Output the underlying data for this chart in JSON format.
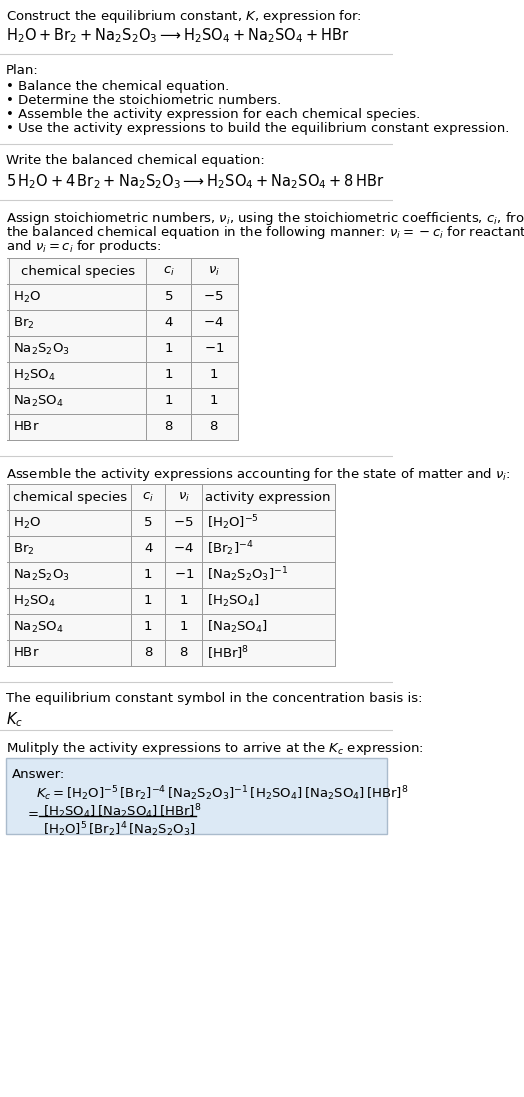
{
  "title_line1": "Construct the equilibrium constant, $K$, expression for:",
  "title_line2": "$\\mathrm{H_2O + Br_2 + Na_2S_2O_3 \\longrightarrow H_2SO_4 + Na_2SO_4 + HBr}$",
  "plan_header": "Plan:",
  "plan_items": [
    "\\textbullet  Balance the chemical equation.",
    "\\textbullet  Determine the stoichiometric numbers.",
    "\\textbullet  Assemble the activity expression for each chemical species.",
    "\\textbullet  Use the activity expressions to build the equilibrium constant expression."
  ],
  "balanced_eq_header": "Write the balanced chemical equation:",
  "balanced_eq": "$\\mathrm{5\\,H_2O + 4\\,Br_2 + Na_2S_2O_3 \\longrightarrow H_2SO_4 + Na_2SO_4 + 8\\,HBr}$",
  "stoich_header": "Assign stoichiometric numbers, $\\nu_i$, using the stoichiometric coefficients, $c_i$, from\\nthe balanced chemical equation in the following manner: $\\nu_i = -c_i$ for reactants\\nand $\\nu_i = c_i$ for products:",
  "table1_headers": [
    "chemical species",
    "$c_i$",
    "$\\nu_i$"
  ],
  "table1_data": [
    [
      "$\\mathrm{H_2O}$",
      "5",
      "$-5$"
    ],
    [
      "$\\mathrm{Br_2}$",
      "4",
      "$-4$"
    ],
    [
      "$\\mathrm{Na_2S_2O_3}$",
      "1",
      "$-1$"
    ],
    [
      "$\\mathrm{H_2SO_4}$",
      "1",
      "$1$"
    ],
    [
      "$\\mathrm{Na_2SO_4}$",
      "1",
      "$1$"
    ],
    [
      "$\\mathrm{HBr}$",
      "8",
      "$8$"
    ]
  ],
  "activity_header": "Assemble the activity expressions accounting for the state of matter and $\\nu_i$:",
  "table2_headers": [
    "chemical species",
    "$c_i$",
    "$\\nu_i$",
    "activity expression"
  ],
  "table2_data": [
    [
      "$\\mathrm{H_2O}$",
      "5",
      "$-5$",
      "$[\\mathrm{H_2O}]^{-5}$"
    ],
    [
      "$\\mathrm{Br_2}$",
      "4",
      "$-4$",
      "$[\\mathrm{Br_2}]^{-4}$"
    ],
    [
      "$\\mathrm{Na_2S_2O_3}$",
      "1",
      "$-1$",
      "$[\\mathrm{Na_2S_2O_3}]^{-1}$"
    ],
    [
      "$\\mathrm{H_2SO_4}$",
      "1",
      "$1$",
      "$[\\mathrm{H_2SO_4}]$"
    ],
    [
      "$\\mathrm{Na_2SO_4}$",
      "1",
      "$1$",
      "$[\\mathrm{Na_2SO_4}]$"
    ],
    [
      "$\\mathrm{HBr}$",
      "8",
      "$8$",
      "$[\\mathrm{HBr}]^8$"
    ]
  ],
  "kc_header": "The equilibrium constant symbol in the concentration basis is:",
  "kc_symbol": "$K_c$",
  "multiply_header": "Mulitply the activity expressions to arrive at the $K_c$ expression:",
  "answer_line1": "$K_c = [\\mathrm{H_2O}]^{-5}\\,[\\mathrm{Br_2}]^{-4}\\,[\\mathrm{Na_2S_2O_3}]^{-1}\\,[\\mathrm{H_2SO_4}]\\,[\\mathrm{Na_2SO_4}]\\,[\\mathrm{HBr}]^8$",
  "answer_line2_num": "$[\\mathrm{H_2SO_4}]\\,[\\mathrm{Na_2SO_4}]\\,[\\mathrm{HBr}]^8$",
  "answer_line2_den": "$[\\mathrm{H_2O}]^5\\,[\\mathrm{Br_2}]^4\\,[\\mathrm{Na_2S_2O_3}]$",
  "bg_color": "#ffffff",
  "table_bg": "#f8f8f8",
  "answer_box_color": "#dce9f5",
  "text_color": "#000000",
  "separator_color": "#cccccc",
  "font_size": 9.5,
  "table_font_size": 9.5
}
